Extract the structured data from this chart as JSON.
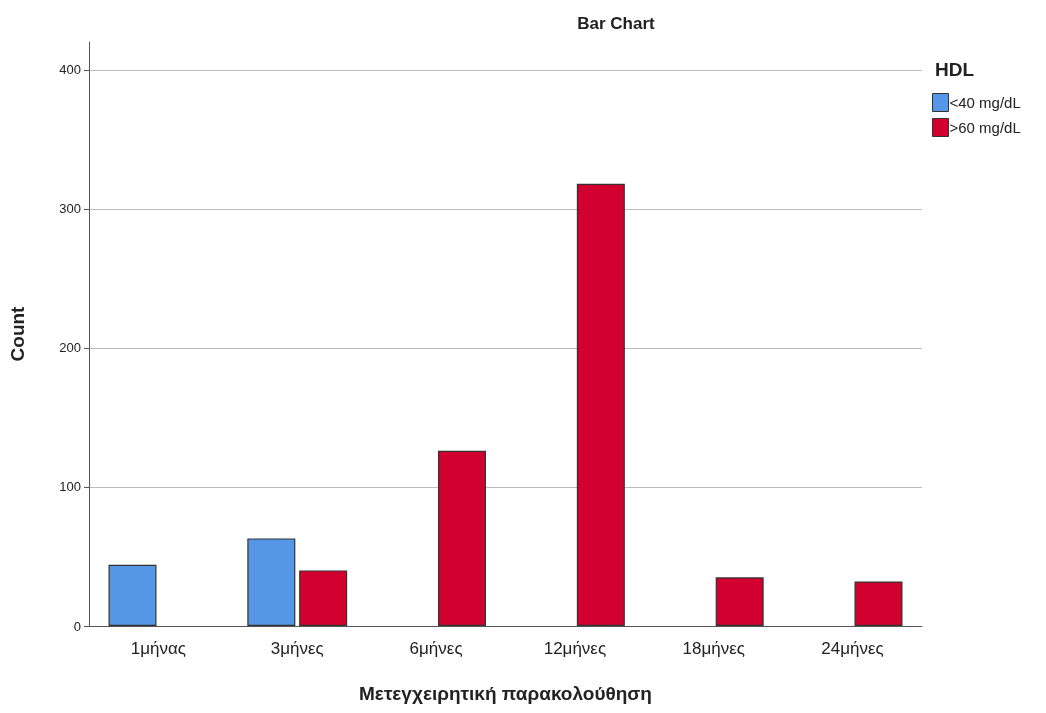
{
  "chart_data": {
    "type": "bar",
    "title": "Bar Chart",
    "xlabel": "Μετεγχειρητική παρακολούθηση",
    "ylabel": "Count",
    "legend_title": "HDL",
    "categories": [
      "1μήνας",
      "3μήνες",
      "6μήνες",
      "12μήνες",
      "18μήνες",
      "24μήνες"
    ],
    "series": [
      {
        "name": "<40 mg/dL",
        "color": "#5596e6",
        "values": [
          44,
          63,
          null,
          null,
          null,
          null
        ]
      },
      {
        "name": ">60 mg/dL",
        "color": "#d2002e",
        "values": [
          null,
          40,
          126,
          318,
          35,
          32
        ]
      }
    ],
    "ylim": [
      0,
      420
    ],
    "yticks": [
      0,
      100,
      200,
      300,
      400
    ],
    "grid": "y",
    "legend": "top right"
  }
}
